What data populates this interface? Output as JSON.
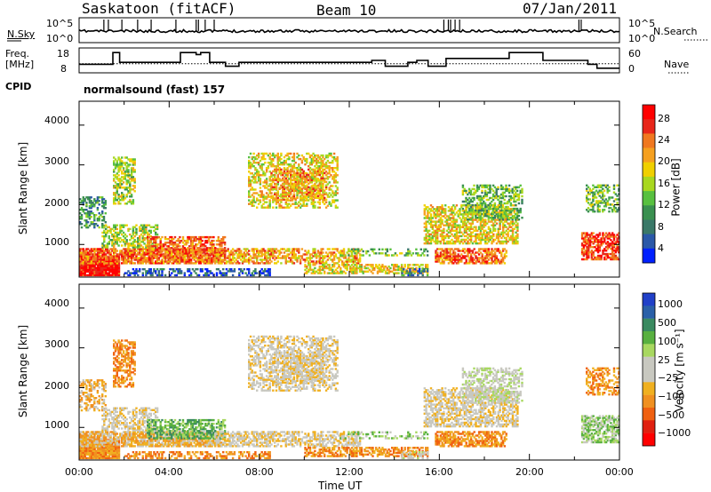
{
  "header": {
    "station": "Saskatoon (fitACF)",
    "beam": "Beam 10",
    "date": "07/Jan/2011"
  },
  "colors": {
    "scatter_none": "#ffffff",
    "axis": "#000000"
  },
  "chart_data": [
    {
      "type": "line",
      "name_panel": "noise",
      "left_label": "N.Sky",
      "right_label": "N.Search",
      "left_ticks": [
        "10^5",
        "10^0"
      ],
      "right_ticks": [
        "10^5",
        "10^0"
      ],
      "x_range_hours": [
        0,
        24
      ],
      "note": ""
    },
    {
      "type": "line",
      "left_label_lines": [
        "Freq.",
        "[MHz]"
      ],
      "right_label": "Nave",
      "left_ticks": [
        "18",
        "8"
      ],
      "right_ticks": [
        "60",
        "0"
      ],
      "freq_mhz_steps": [
        {
          "t0": 0.0,
          "t1": 1.5,
          "f": 11
        },
        {
          "t0": 1.5,
          "t1": 1.8,
          "f": 17
        },
        {
          "t0": 1.8,
          "t1": 4.5,
          "f": 12
        },
        {
          "t0": 4.5,
          "t1": 5.2,
          "f": 17
        },
        {
          "t0": 5.2,
          "t1": 5.4,
          "f": 16
        },
        {
          "t0": 5.4,
          "t1": 5.8,
          "f": 17
        },
        {
          "t0": 5.8,
          "t1": 6.5,
          "f": 12
        },
        {
          "t0": 6.5,
          "t1": 7.1,
          "f": 10
        },
        {
          "t0": 7.1,
          "t1": 13.0,
          "f": 12
        },
        {
          "t0": 13.0,
          "t1": 13.6,
          "f": 13
        },
        {
          "t0": 13.6,
          "t1": 14.6,
          "f": 10
        },
        {
          "t0": 14.6,
          "t1": 15.0,
          "f": 12
        },
        {
          "t0": 15.0,
          "t1": 15.5,
          "f": 13
        },
        {
          "t0": 15.5,
          "t1": 16.3,
          "f": 10
        },
        {
          "t0": 16.3,
          "t1": 19.1,
          "f": 14
        },
        {
          "t0": 19.1,
          "t1": 20.6,
          "f": 17
        },
        {
          "t0": 20.6,
          "t1": 22.6,
          "f": 13
        },
        {
          "t0": 22.6,
          "t1": 23.0,
          "f": 11
        },
        {
          "t0": 23.0,
          "t1": 24.0,
          "f": 9
        }
      ],
      "nave_level": 17
    },
    {
      "type": "heatmap",
      "cpid_label": "CPID",
      "program": "normalsound (fast) 157",
      "ylabel": "Slant Range [km]",
      "yticks": [
        "4000",
        "3000",
        "2000",
        "1000"
      ],
      "ylim_km": [
        180,
        4600
      ],
      "colorbar_label": "Power [dB]",
      "colorbar_ticks": [
        "28",
        "24",
        "20",
        "16",
        "12",
        "8",
        "4"
      ],
      "colorbar_colors": [
        "#ff0000",
        "#e8261a",
        "#f07820",
        "#f5a020",
        "#f0d000",
        "#a8d820",
        "#58c040",
        "#3a9050",
        "#3a7868",
        "#2a58a8",
        "#0020ff"
      ]
    },
    {
      "type": "heatmap",
      "ylabel": "Slant Range [km]",
      "yticks": [
        "4000",
        "3000",
        "2000",
        "1000"
      ],
      "ylim_km": [
        180,
        4600
      ],
      "colorbar_label": "Velocity [m s⁻¹]",
      "colorbar_ticks": [
        "1000",
        "500",
        "100",
        "25",
        "−25",
        "−100",
        "−500",
        "−1000"
      ],
      "colorbar_colors": [
        "#2040c8",
        "#2a60a8",
        "#3a8a60",
        "#58b040",
        "#a8d860",
        "#c8c8c0",
        "#c8c8c0",
        "#f0b020",
        "#f09020",
        "#f06010",
        "#e02010",
        "#ff0000"
      ]
    }
  ],
  "xaxis": {
    "ticks": [
      "00:00",
      "04:00",
      "08:00",
      "12:00",
      "16:00",
      "20:00",
      "00:00"
    ],
    "label": "Time UT"
  }
}
